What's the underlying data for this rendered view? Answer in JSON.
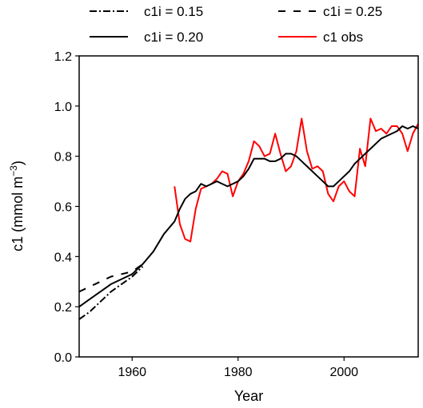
{
  "chart_data": {
    "type": "line",
    "xlabel": "Year",
    "ylabel_main": "c1 (mmol m",
    "ylabel_exp": "−3",
    "ylabel_close": ")",
    "xlim": [
      1950,
      2014
    ],
    "ylim": [
      0.0,
      1.2
    ],
    "xticks": [
      1960,
      1980,
      2000
    ],
    "yticks": [
      0.0,
      0.2,
      0.4,
      0.6,
      0.8,
      1.0,
      1.2
    ],
    "grid": false,
    "legend_position": "top",
    "series": [
      {
        "name": "c1i = 0.15",
        "color": "#000000",
        "style": "dashdot",
        "x": [
          1950,
          1952,
          1954,
          1956,
          1958,
          1960,
          1962
        ],
        "y": [
          0.15,
          0.18,
          0.22,
          0.26,
          0.29,
          0.32,
          0.36
        ]
      },
      {
        "name": "c1i = 0.25",
        "color": "#000000",
        "style": "dashed",
        "x": [
          1950,
          1952,
          1954,
          1956,
          1958,
          1960,
          1962
        ],
        "y": [
          0.26,
          0.28,
          0.3,
          0.32,
          0.33,
          0.34,
          0.37
        ]
      },
      {
        "name": "c1i = 0.20",
        "color": "#000000",
        "style": "solid",
        "x": [
          1950,
          1952,
          1954,
          1956,
          1958,
          1960,
          1962,
          1964,
          1966,
          1968,
          1969,
          1970,
          1971,
          1972,
          1973,
          1974,
          1975,
          1976,
          1977,
          1978,
          1979,
          1980,
          1981,
          1982,
          1983,
          1984,
          1985,
          1986,
          1987,
          1988,
          1989,
          1990,
          1991,
          1992,
          1993,
          1994,
          1995,
          1996,
          1997,
          1998,
          1999,
          2000,
          2001,
          2002,
          2003,
          2004,
          2005,
          2006,
          2007,
          2008,
          2009,
          2010,
          2011,
          2012,
          2013,
          2014
        ],
        "y": [
          0.2,
          0.23,
          0.26,
          0.29,
          0.31,
          0.33,
          0.37,
          0.42,
          0.49,
          0.54,
          0.59,
          0.63,
          0.65,
          0.66,
          0.69,
          0.68,
          0.69,
          0.7,
          0.69,
          0.68,
          0.69,
          0.7,
          0.72,
          0.75,
          0.79,
          0.79,
          0.79,
          0.78,
          0.78,
          0.79,
          0.81,
          0.81,
          0.8,
          0.78,
          0.76,
          0.74,
          0.72,
          0.7,
          0.68,
          0.68,
          0.7,
          0.72,
          0.74,
          0.77,
          0.79,
          0.81,
          0.83,
          0.85,
          0.87,
          0.88,
          0.89,
          0.9,
          0.92,
          0.91,
          0.92,
          0.91
        ]
      },
      {
        "name": "c1 obs",
        "color": "#ff0000",
        "style": "solid",
        "x": [
          1968,
          1969,
          1970,
          1971,
          1972,
          1973,
          1974,
          1975,
          1976,
          1977,
          1978,
          1979,
          1980,
          1981,
          1982,
          1983,
          1984,
          1985,
          1986,
          1987,
          1988,
          1989,
          1990,
          1991,
          1992,
          1993,
          1994,
          1995,
          1996,
          1997,
          1998,
          1999,
          2000,
          2001,
          2002,
          2003,
          2004,
          2005,
          2006,
          2007,
          2008,
          2009,
          2010,
          2011,
          2012,
          2013,
          2014
        ],
        "y": [
          0.68,
          0.53,
          0.47,
          0.46,
          0.59,
          0.67,
          0.68,
          0.69,
          0.71,
          0.74,
          0.73,
          0.64,
          0.7,
          0.73,
          0.78,
          0.86,
          0.84,
          0.8,
          0.81,
          0.89,
          0.81,
          0.74,
          0.76,
          0.82,
          0.95,
          0.82,
          0.75,
          0.76,
          0.74,
          0.65,
          0.62,
          0.68,
          0.7,
          0.66,
          0.64,
          0.83,
          0.76,
          0.95,
          0.9,
          0.91,
          0.89,
          0.92,
          0.92,
          0.89,
          0.82,
          0.89,
          0.93
        ]
      }
    ]
  }
}
